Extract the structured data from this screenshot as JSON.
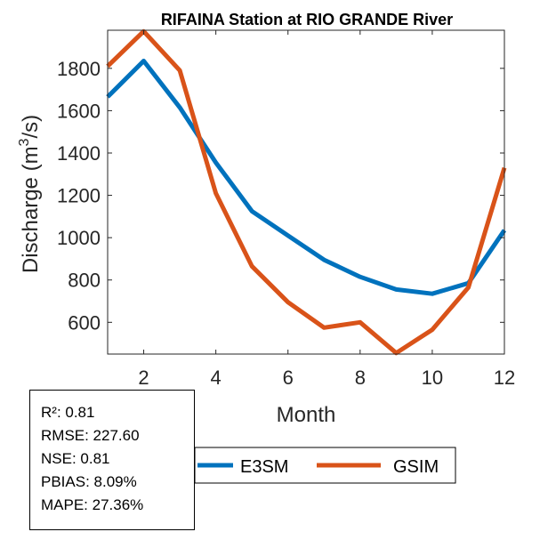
{
  "chart_data": {
    "type": "line",
    "title": "RIFAINA  Station at  RIO GRANDE  River",
    "xlabel": "Month",
    "ylabel_main": "Discharge (m",
    "ylabel_sup": "3",
    "ylabel_end": "/s)",
    "xlim": [
      1,
      12
    ],
    "ylim": [
      450,
      1980
    ],
    "xticks": [
      2,
      4,
      6,
      8,
      10,
      12
    ],
    "yticks": [
      600,
      800,
      1000,
      1200,
      1400,
      1600,
      1800
    ],
    "x": [
      1,
      2,
      3,
      4,
      5,
      6,
      7,
      8,
      9,
      10,
      11,
      12
    ],
    "series": [
      {
        "name": "E3SM",
        "color": "#0072BD",
        "values": [
          1665,
          1835,
          1615,
          1355,
          1125,
          1010,
          895,
          815,
          755,
          735,
          785,
          1035
        ]
      },
      {
        "name": "GSIM",
        "color": "#D95319",
        "values": [
          1810,
          1975,
          1790,
          1210,
          865,
          695,
          575,
          600,
          455,
          565,
          765,
          1330
        ]
      }
    ],
    "legend_placement": "bottom-center",
    "grid": false
  },
  "stats": {
    "r2": "R²: 0.81",
    "rmse": "RMSE: 227.60",
    "nse": "NSE: 0.81",
    "pbias": "PBIAS: 8.09%",
    "mape": "MAPE: 27.36%"
  }
}
